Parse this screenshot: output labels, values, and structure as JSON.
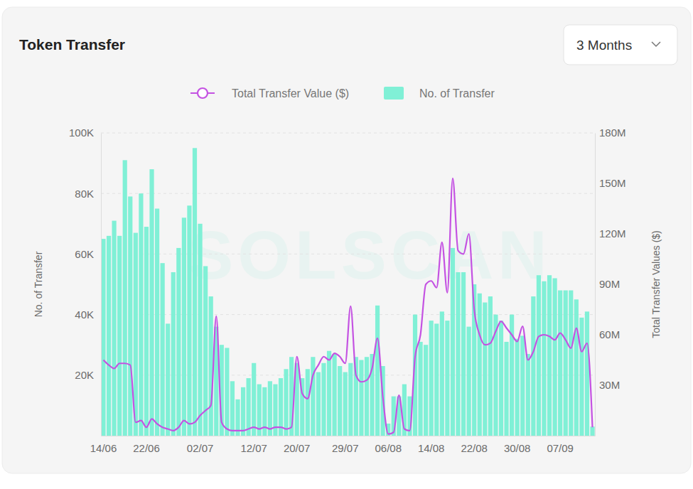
{
  "chart_data": {
    "type": "bar",
    "title": "Token Transfer",
    "annotations": [
      "3 Months",
      "SOLSCAN"
    ],
    "y_label": "No. of Transfer",
    "y2_label": "Total Transfer Values ($)",
    "categories": [
      "14/06",
      null,
      null,
      null,
      null,
      null,
      null,
      null,
      "22/06",
      null,
      null,
      null,
      null,
      null,
      null,
      null,
      null,
      null,
      "02/07",
      null,
      null,
      null,
      null,
      null,
      null,
      null,
      null,
      null,
      "12/07",
      null,
      null,
      null,
      null,
      null,
      null,
      null,
      "20/07",
      null,
      null,
      null,
      null,
      null,
      null,
      null,
      null,
      "29/07",
      null,
      null,
      null,
      null,
      null,
      null,
      null,
      "06/08",
      null,
      null,
      null,
      null,
      null,
      null,
      null,
      "14/08",
      null,
      null,
      null,
      null,
      null,
      null,
      null,
      "22/08",
      null,
      null,
      null,
      null,
      null,
      null,
      null,
      "30/08",
      null,
      null,
      null,
      null,
      null,
      null,
      null,
      "07/09",
      null,
      null,
      null,
      null,
      null,
      null
    ],
    "ylim": [
      0,
      100000
    ],
    "yticks": [
      {
        "value": 20000,
        "label": "20K"
      },
      {
        "value": 40000,
        "label": "40K"
      },
      {
        "value": 60000,
        "label": "60K"
      },
      {
        "value": 80000,
        "label": "80K"
      },
      {
        "value": 100000,
        "label": "100K"
      }
    ],
    "y2lim": [
      0,
      180000000
    ],
    "y2ticks": [
      {
        "value": 30000000,
        "label": "30M"
      },
      {
        "value": 60000000,
        "label": "60M"
      },
      {
        "value": 90000000,
        "label": "90M"
      },
      {
        "value": 120000000,
        "label": "120M"
      },
      {
        "value": 150000000,
        "label": "150M"
      },
      {
        "value": 180000000,
        "label": "180M"
      }
    ],
    "grid": true,
    "legend": "top",
    "series": [
      {
        "name": "Total Transfer Value ($)",
        "type": "line",
        "axis": "y2",
        "color": "#c452e2",
        "marker": "none",
        "values": [
          45000000,
          42000000,
          40000000,
          43000000,
          43000000,
          42000000,
          8000000,
          9000000,
          5000000,
          10000000,
          7000000,
          5000000,
          4000000,
          3000000,
          5000000,
          9000000,
          7000000,
          8000000,
          12000000,
          15000000,
          18000000,
          71000000,
          8000000,
          4000000,
          3000000,
          3000000,
          3000000,
          4000000,
          5000000,
          4000000,
          5000000,
          4000000,
          5000000,
          5000000,
          4000000,
          5000000,
          47000000,
          25000000,
          22000000,
          36000000,
          42000000,
          47000000,
          45000000,
          49000000,
          47000000,
          43000000,
          77000000,
          36000000,
          32000000,
          33000000,
          40000000,
          58000000,
          23000000,
          1000000,
          2000000,
          24000000,
          4000000,
          3000000,
          47000000,
          60000000,
          90000000,
          92000000,
          88000000,
          115000000,
          85000000,
          153000000,
          110000000,
          108000000,
          120000000,
          75000000,
          60000000,
          54000000,
          55000000,
          62000000,
          68000000,
          64000000,
          60000000,
          56000000,
          65000000,
          45000000,
          50000000,
          59000000,
          60000000,
          59000000,
          57000000,
          61000000,
          57000000,
          52000000,
          64000000,
          50000000,
          55000000,
          5000000
        ]
      },
      {
        "name": "No. of Transfer",
        "type": "bar",
        "color": "#80f0d6",
        "values": [
          65000,
          66000,
          71000,
          66000,
          91000,
          79000,
          67000,
          80000,
          69000,
          88000,
          75000,
          57000,
          37000,
          54000,
          62000,
          72000,
          76000,
          95000,
          70000,
          56000,
          46000,
          36000,
          30000,
          29000,
          18000,
          12000,
          16000,
          19000,
          24000,
          17000,
          16000,
          18000,
          17000,
          19000,
          22000,
          26000,
          24000,
          19000,
          22000,
          26000,
          21000,
          24000,
          28000,
          27000,
          23000,
          21000,
          24000,
          26000,
          25000,
          26000,
          27000,
          43000,
          23000,
          4000,
          13000,
          13000,
          17000,
          13000,
          40000,
          31000,
          30000,
          38000,
          37000,
          41000,
          38000,
          62000,
          54000,
          54000,
          36000,
          50000,
          47000,
          44000,
          46000,
          40000,
          38000,
          31000,
          40000,
          32000,
          33000,
          27000,
          46000,
          53000,
          51000,
          53000,
          52000,
          48000,
          48000,
          48000,
          45000,
          39000,
          41000,
          3000
        ]
      }
    ]
  }
}
